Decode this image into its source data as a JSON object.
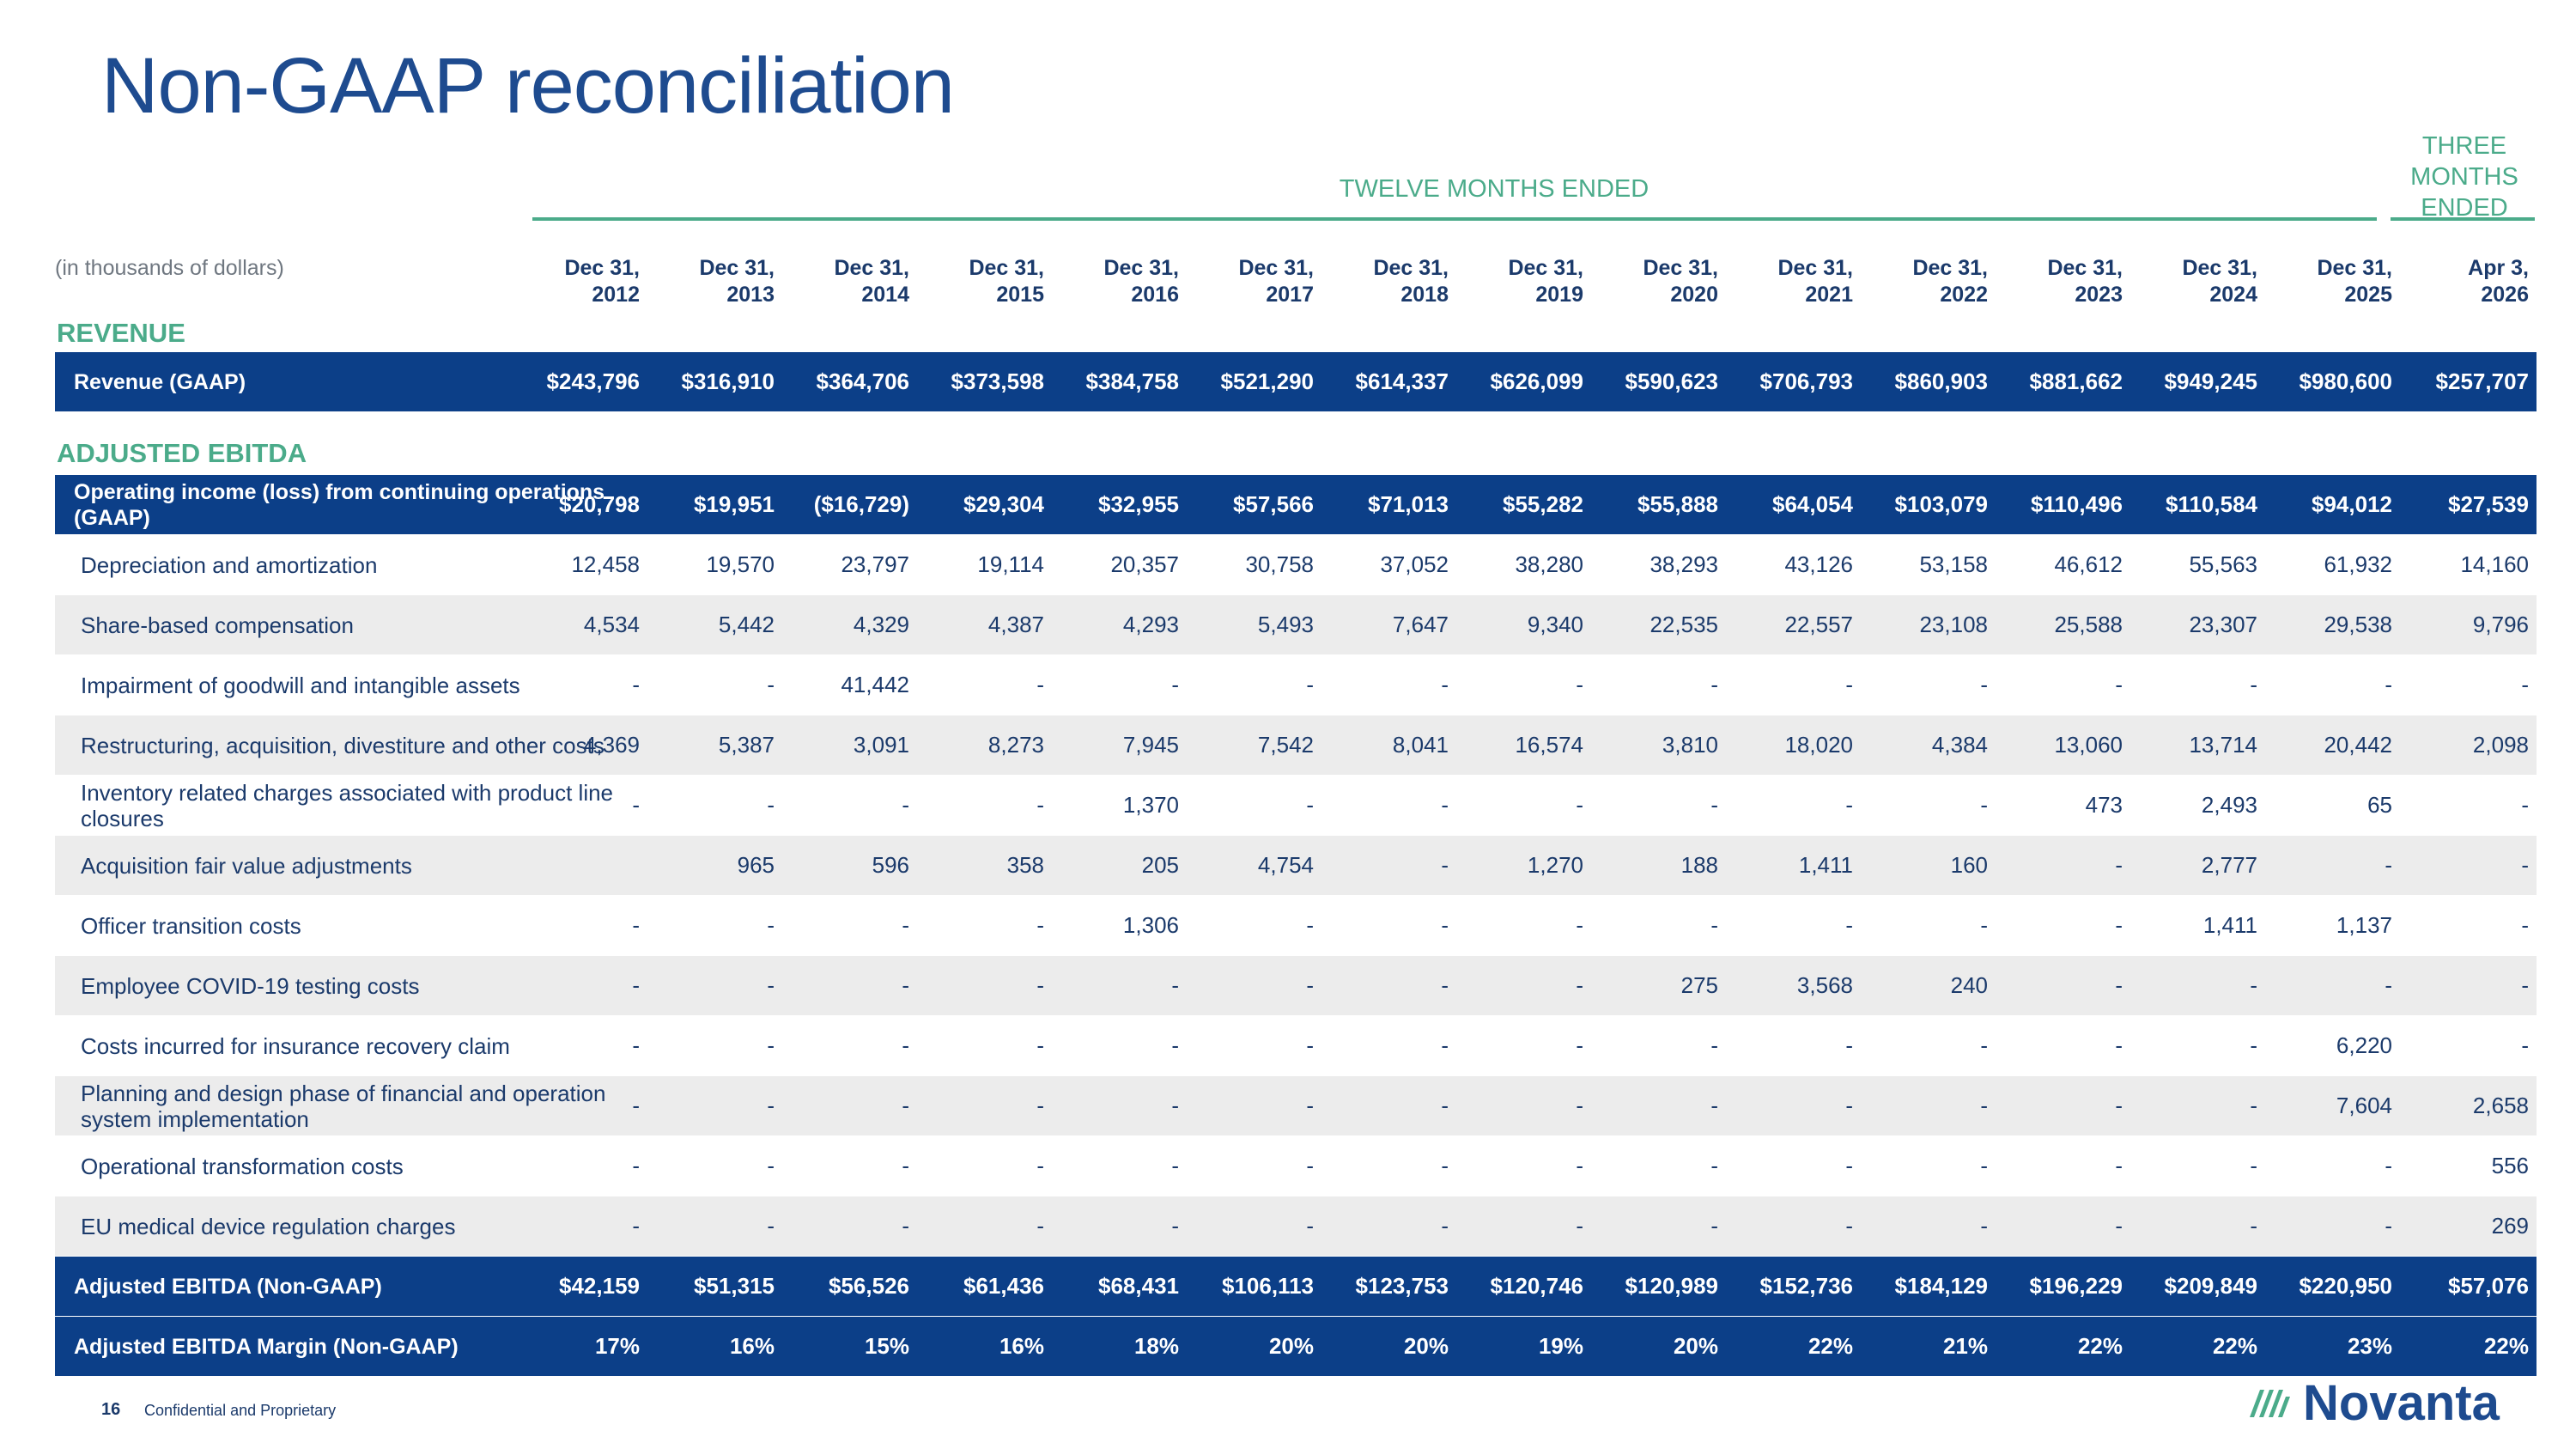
{
  "title": "Non-GAAP reconciliation",
  "periods": {
    "twelve": "TWELVE MONTHS ENDED",
    "three": "THREE MONTHS ENDED"
  },
  "unit_note": "(in thousands of dollars)",
  "columns": [
    {
      "l1": "Dec 31,",
      "l2": "2012"
    },
    {
      "l1": "Dec 31,",
      "l2": "2013"
    },
    {
      "l1": "Dec 31,",
      "l2": "2014"
    },
    {
      "l1": "Dec 31,",
      "l2": "2015"
    },
    {
      "l1": "Dec 31,",
      "l2": "2016"
    },
    {
      "l1": "Dec 31,",
      "l2": "2017"
    },
    {
      "l1": "Dec 31,",
      "l2": "2018"
    },
    {
      "l1": "Dec 31,",
      "l2": "2019"
    },
    {
      "l1": "Dec 31,",
      "l2": "2020"
    },
    {
      "l1": "Dec 31,",
      "l2": "2021"
    },
    {
      "l1": "Dec 31,",
      "l2": "2022"
    },
    {
      "l1": "Dec 31,",
      "l2": "2023"
    },
    {
      "l1": "Dec 31,",
      "l2": "2024"
    },
    {
      "l1": "Dec 31,",
      "l2": "2025"
    },
    {
      "l1": "Apr 3,",
      "l2": "2026"
    }
  ],
  "sections": {
    "revenue": "REVENUE",
    "ebitda": "ADJUSTED EBITDA"
  },
  "rows": [
    {
      "label": "Revenue (GAAP)",
      "style": "dark",
      "values": [
        "$243,796",
        "$316,910",
        "$364,706",
        "$373,598",
        "$384,758",
        "$521,290",
        "$614,337",
        "$626,099",
        "$590,623",
        "$706,793",
        "$860,903",
        "$881,662",
        "$949,245",
        "$980,600",
        "$257,707"
      ]
    },
    {
      "label": "Operating income (loss) from continuing operations (GAAP)",
      "style": "dark",
      "values": [
        "$20,798",
        "$19,951",
        "($16,729)",
        "$29,304",
        "$32,955",
        "$57,566",
        "$71,013",
        "$55,282",
        "$55,888",
        "$64,054",
        "$103,079",
        "$110,496",
        "$110,584",
        "$94,012",
        "$27,539"
      ]
    },
    {
      "label": "Depreciation and amortization",
      "style": "light",
      "values": [
        "12,458",
        "19,570",
        "23,797",
        "19,114",
        "20,357",
        "30,758",
        "37,052",
        "38,280",
        "38,293",
        "43,126",
        "53,158",
        "46,612",
        "55,563",
        "61,932",
        "14,160"
      ]
    },
    {
      "label": "Share-based compensation",
      "style": "alt",
      "values": [
        "4,534",
        "5,442",
        "4,329",
        "4,387",
        "4,293",
        "5,493",
        "7,647",
        "9,340",
        "22,535",
        "22,557",
        "23,108",
        "25,588",
        "23,307",
        "29,538",
        "9,796"
      ]
    },
    {
      "label": "Impairment of goodwill and intangible assets",
      "style": "light",
      "values": [
        "-",
        "-",
        "41,442",
        "-",
        "-",
        "-",
        "-",
        "-",
        "-",
        "-",
        "-",
        "-",
        "-",
        "-",
        "-"
      ]
    },
    {
      "label": "Restructuring, acquisition, divestiture and other costs",
      "style": "alt",
      "values": [
        "4,369",
        "5,387",
        "3,091",
        "8,273",
        "7,945",
        "7,542",
        "8,041",
        "16,574",
        "3,810",
        "18,020",
        "4,384",
        "13,060",
        "13,714",
        "20,442",
        "2,098"
      ]
    },
    {
      "label": "Inventory related charges associated with product line closures",
      "style": "light",
      "values": [
        "-",
        "-",
        "-",
        "-",
        "1,370",
        "-",
        "-",
        "-",
        "-",
        "-",
        "-",
        "473",
        "2,493",
        "65",
        "-"
      ]
    },
    {
      "label": "Acquisition fair value adjustments",
      "style": "alt",
      "values": [
        "",
        "965",
        "596",
        "358",
        "205",
        "4,754",
        "-",
        "1,270",
        "188",
        "1,411",
        "160",
        "-",
        "2,777",
        "-",
        "-"
      ]
    },
    {
      "label": "Officer transition costs",
      "style": "light",
      "values": [
        "-",
        "-",
        "-",
        "-",
        "1,306",
        "-",
        "-",
        "-",
        "-",
        "-",
        "-",
        "-",
        "1,411",
        "1,137",
        "-"
      ]
    },
    {
      "label": "Employee COVID-19 testing costs",
      "style": "alt",
      "values": [
        "-",
        "-",
        "-",
        "-",
        "-",
        "-",
        "-",
        "-",
        "275",
        "3,568",
        "240",
        "-",
        "-",
        "-",
        "-"
      ]
    },
    {
      "label": "Costs incurred for insurance recovery claim",
      "style": "light",
      "values": [
        "-",
        "-",
        "-",
        "-",
        "-",
        "-",
        "-",
        "-",
        "-",
        "-",
        "-",
        "-",
        "-",
        "6,220",
        "-"
      ]
    },
    {
      "label": "Planning and design phase of financial and operation system implementation",
      "style": "alt",
      "values": [
        "-",
        "-",
        "-",
        "-",
        "-",
        "-",
        "-",
        "-",
        "-",
        "-",
        "-",
        "-",
        "-",
        "7,604",
        "2,658"
      ]
    },
    {
      "label": "Operational transformation costs",
      "style": "light",
      "values": [
        "-",
        "-",
        "-",
        "-",
        "-",
        "-",
        "-",
        "-",
        "-",
        "-",
        "-",
        "-",
        "-",
        "-",
        "556"
      ]
    },
    {
      "label": "EU medical device regulation charges",
      "style": "alt",
      "values": [
        "-",
        "-",
        "-",
        "-",
        "-",
        "-",
        "-",
        "-",
        "-",
        "-",
        "-",
        "-",
        "-",
        "-",
        "269"
      ]
    },
    {
      "label": "Adjusted EBITDA (Non-GAAP)",
      "style": "dark",
      "values": [
        "$42,159",
        "$51,315",
        "$56,526",
        "$61,436",
        "$68,431",
        "$106,113",
        "$123,753",
        "$120,746",
        "$120,989",
        "$152,736",
        "$184,129",
        "$196,229",
        "$209,849",
        "$220,950",
        "$57,076"
      ]
    },
    {
      "label": "Adjusted EBITDA Margin (Non-GAAP)",
      "style": "dark",
      "values": [
        "17%",
        "16%",
        "15%",
        "16%",
        "18%",
        "20%",
        "20%",
        "19%",
        "20%",
        "22%",
        "21%",
        "22%",
        "22%",
        "23%",
        "22%"
      ]
    }
  ],
  "footer": {
    "page": "16",
    "text": "Confidential and Proprietary"
  },
  "logo": {
    "word": "Novanta",
    "icon": "novanta-logo-icon"
  }
}
